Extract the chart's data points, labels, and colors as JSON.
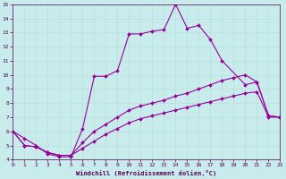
{
  "xlabel": "Windchill (Refroidissement éolien,°C)",
  "xlim": [
    0,
    23
  ],
  "ylim": [
    4,
    15
  ],
  "xticks": [
    0,
    1,
    2,
    3,
    4,
    5,
    6,
    7,
    8,
    9,
    10,
    11,
    12,
    13,
    14,
    15,
    16,
    17,
    18,
    19,
    20,
    21,
    22,
    23
  ],
  "yticks": [
    4,
    5,
    6,
    7,
    8,
    9,
    10,
    11,
    12,
    13,
    14,
    15
  ],
  "background_color": "#c8ecec",
  "line_color": "#990099",
  "grid_color": "#b8dede",
  "series": [
    {
      "x": [
        0,
        1,
        2,
        3,
        4,
        5,
        6,
        7,
        8,
        9,
        10,
        11,
        12,
        13,
        14,
        15,
        16,
        17,
        18,
        20,
        21,
        22,
        23
      ],
      "y": [
        6.0,
        5.5,
        5.0,
        4.4,
        4.2,
        4.2,
        6.2,
        9.9,
        9.9,
        10.3,
        12.9,
        12.9,
        13.1,
        13.2,
        15.0,
        13.3,
        13.5,
        12.5,
        11.0,
        9.3,
        9.5,
        7.1,
        7.0
      ]
    },
    {
      "x": [
        0,
        1,
        2,
        3,
        4,
        5,
        6,
        7,
        8,
        9,
        10,
        11,
        12,
        13,
        14,
        15,
        16,
        17,
        18,
        19,
        20,
        21,
        22,
        23
      ],
      "y": [
        6.0,
        5.0,
        4.9,
        4.5,
        4.3,
        4.3,
        5.2,
        6.0,
        6.5,
        7.0,
        7.5,
        7.8,
        8.0,
        8.2,
        8.5,
        8.7,
        9.0,
        9.3,
        9.6,
        9.8,
        10.0,
        9.5,
        7.1,
        7.0
      ]
    },
    {
      "x": [
        0,
        1,
        2,
        3,
        4,
        5,
        6,
        7,
        8,
        9,
        10,
        11,
        12,
        13,
        14,
        15,
        16,
        17,
        18,
        19,
        20,
        21,
        22,
        23
      ],
      "y": [
        6.0,
        5.0,
        4.9,
        4.5,
        4.3,
        4.3,
        4.8,
        5.3,
        5.8,
        6.2,
        6.6,
        6.9,
        7.1,
        7.3,
        7.5,
        7.7,
        7.9,
        8.1,
        8.3,
        8.5,
        8.7,
        8.8,
        7.0,
        7.0
      ]
    }
  ]
}
